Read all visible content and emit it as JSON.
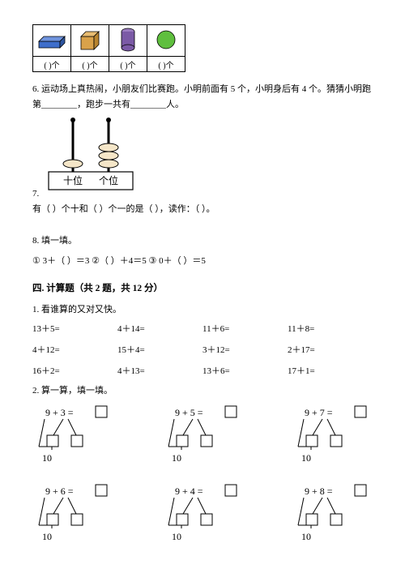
{
  "shapes": {
    "cuboid_color": "#3e6ecb",
    "cube_color": "#d9a24a",
    "cylinder_color": "#7b5aa6",
    "sphere_color": "#5fbf3e",
    "label": "(    )个"
  },
  "q6": {
    "text": "6. 运动场上真热闹，小朋友们比赛跑。小明前面有 5 个，小明身后有 4 个。猜猜小明跑第________，跑步一共有________人。"
  },
  "q7": {
    "prefix": "7.",
    "tens_label": "十位",
    "ones_label": "个位",
    "rod_color": "#1a1a1a",
    "bead_fill": "#f5e6c8",
    "line": "有（      ）个十和（      ）个一的是（      ），读作：（      ）。"
  },
  "q8": {
    "title": "8. 填一填。",
    "items": "① 3＋（      ）＝3    ②（      ）＋4＝5     ③ 0＋（      ）＝5"
  },
  "section4": {
    "title": "四. 计算题（共 2 题，共 12 分）",
    "sub1": "1. 看谁算的又对又快。",
    "grid": [
      "13＋5=",
      "4＋14=",
      "11＋6=",
      "11＋8=",
      "4＋12=",
      "15＋4=",
      "3＋12=",
      "2＋17=",
      "16＋2=",
      "4＋13=",
      "13＋6=",
      "17＋1="
    ],
    "sub2": "2. 算一算，填一填。",
    "bonds": {
      "row1": [
        {
          "a": "9",
          "b": "3",
          "ten": "10"
        },
        {
          "a": "9",
          "b": "5",
          "ten": "10"
        },
        {
          "a": "9",
          "b": "7",
          "ten": "10"
        }
      ],
      "row2": [
        {
          "a": "9",
          "b": "6",
          "ten": "10"
        },
        {
          "a": "9",
          "b": "4",
          "ten": "10"
        },
        {
          "a": "9",
          "b": "8",
          "ten": "10"
        }
      ]
    }
  }
}
